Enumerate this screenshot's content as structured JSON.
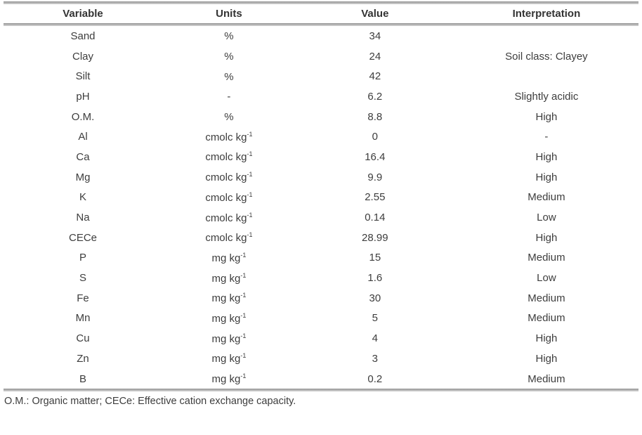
{
  "table": {
    "columns": [
      "Variable",
      "Units",
      "Value",
      "Interpretation"
    ],
    "rows": [
      {
        "variable": "Sand",
        "units": "%",
        "units_sup": "",
        "value": "34",
        "interpretation": ""
      },
      {
        "variable": "Clay",
        "units": "%",
        "units_sup": "",
        "value": "24",
        "interpretation": "Soil class: Clayey"
      },
      {
        "variable": "Silt",
        "units": "%",
        "units_sup": "",
        "value": "42",
        "interpretation": ""
      },
      {
        "variable": "pH",
        "units": "-",
        "units_sup": "",
        "value": "6.2",
        "interpretation": "Slightly acidic"
      },
      {
        "variable": "O.M.",
        "units": "%",
        "units_sup": "",
        "value": "8.8",
        "interpretation": "High"
      },
      {
        "variable": "Al",
        "units": "cmolc kg",
        "units_sup": "-1",
        "value": "0",
        "interpretation": "-"
      },
      {
        "variable": "Ca",
        "units": "cmolc kg",
        "units_sup": "-1",
        "value": "16.4",
        "interpretation": "High"
      },
      {
        "variable": "Mg",
        "units": "cmolc kg",
        "units_sup": "-1",
        "value": "9.9",
        "interpretation": "High"
      },
      {
        "variable": "K",
        "units": "cmolc kg",
        "units_sup": "-1",
        "value": "2.55",
        "interpretation": "Medium"
      },
      {
        "variable": "Na",
        "units": "cmolc kg",
        "units_sup": "-1",
        "value": "0.14",
        "interpretation": "Low"
      },
      {
        "variable": "CECe",
        "units": "cmolc kg",
        "units_sup": "-1",
        "value": "28.99",
        "interpretation": "High"
      },
      {
        "variable": "P",
        "units": "mg kg",
        "units_sup": "-1",
        "value": "15",
        "interpretation": "Medium"
      },
      {
        "variable": "S",
        "units": "mg kg",
        "units_sup": "-1",
        "value": "1.6",
        "interpretation": "Low"
      },
      {
        "variable": "Fe",
        "units": "mg kg",
        "units_sup": "-1",
        "value": "30",
        "interpretation": "Medium"
      },
      {
        "variable": "Mn",
        "units": "mg kg",
        "units_sup": "-1",
        "value": "5",
        "interpretation": "Medium"
      },
      {
        "variable": "Cu",
        "units": "mg kg",
        "units_sup": "-1",
        "value": "4",
        "interpretation": "High"
      },
      {
        "variable": "Zn",
        "units": "mg kg",
        "units_sup": "-1",
        "value": "3",
        "interpretation": "High"
      },
      {
        "variable": "B",
        "units": "mg kg",
        "units_sup": "-1",
        "value": "0.2",
        "interpretation": "Medium"
      }
    ],
    "footnote": "O.M.: Organic matter; CECe: Effective cation exchange capacity."
  }
}
